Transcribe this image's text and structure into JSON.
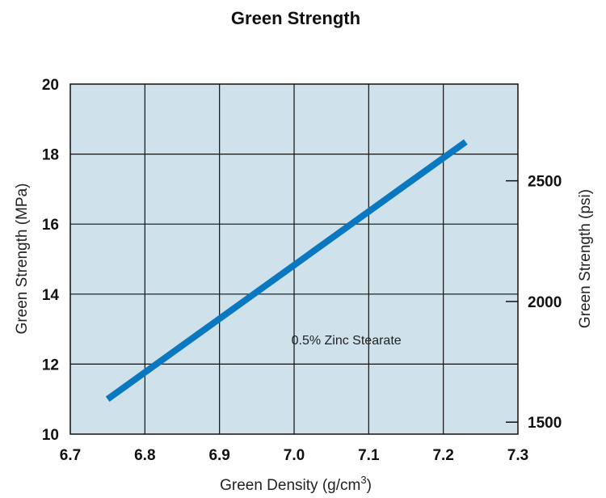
{
  "chart_data": {
    "type": "line",
    "title": "Green Strength",
    "xlabel": "Green Density (g/cm",
    "xlabel_sup": "3",
    "xlabel_close": ")",
    "ylabel": "Green Strength (MPa)",
    "y2label": "Green Strength (psi)",
    "xlim": [
      6.7,
      7.3
    ],
    "ylim": [
      10,
      20
    ],
    "y2lim": [
      1450.4,
      2900.8
    ],
    "x_ticks": [
      "6.7",
      "6.8",
      "6.9",
      "7.0",
      "7.1",
      "7.2",
      "7.3"
    ],
    "x_tick_values": [
      6.7,
      6.8,
      6.9,
      7.0,
      7.1,
      7.2,
      7.3
    ],
    "y_ticks": [
      "10",
      "12",
      "14",
      "16",
      "18",
      "20"
    ],
    "y_tick_values": [
      10,
      12,
      14,
      16,
      18,
      20
    ],
    "y2_ticks": [
      "1500",
      "2000",
      "2500"
    ],
    "y2_tick_values": [
      1500,
      2000,
      2500
    ],
    "grid": true,
    "plot_background": "#cfe1ea",
    "series": [
      {
        "name": "0.5% Zinc Stearate",
        "color": "#0a78c0",
        "x": [
          6.75,
          7.23
        ],
        "y": [
          11.0,
          18.35
        ]
      }
    ],
    "annotations": [
      {
        "text": "0.5% Zinc Stearate",
        "x": 7.07,
        "y": 12.7
      }
    ]
  }
}
